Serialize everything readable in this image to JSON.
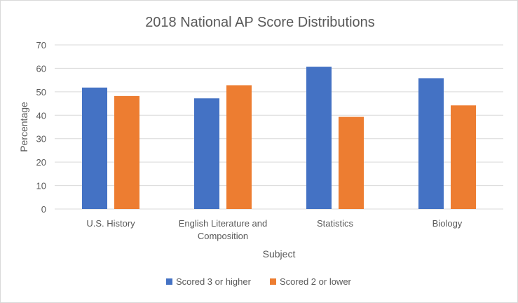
{
  "chart_data": {
    "type": "bar",
    "title": "2018 National AP Score Distributions",
    "xlabel": "Subject",
    "ylabel": "Percentage",
    "ylim": [
      0,
      70
    ],
    "yticks": [
      0,
      10,
      20,
      30,
      40,
      50,
      60,
      70
    ],
    "grid": true,
    "legend_position": "bottom",
    "categories": [
      [
        "U.S. History"
      ],
      [
        "English Literature and",
        "Composition"
      ],
      [
        "Statistics"
      ],
      [
        "Biology"
      ]
    ],
    "series": [
      {
        "name": "Scored 3 or higher",
        "color": "#4472c4",
        "values": [
          51.8,
          47.2,
          60.7,
          55.8
        ]
      },
      {
        "name": "Scored 2 or lower",
        "color": "#ed7d31",
        "values": [
          48.2,
          52.8,
          39.3,
          44.2
        ]
      }
    ]
  }
}
